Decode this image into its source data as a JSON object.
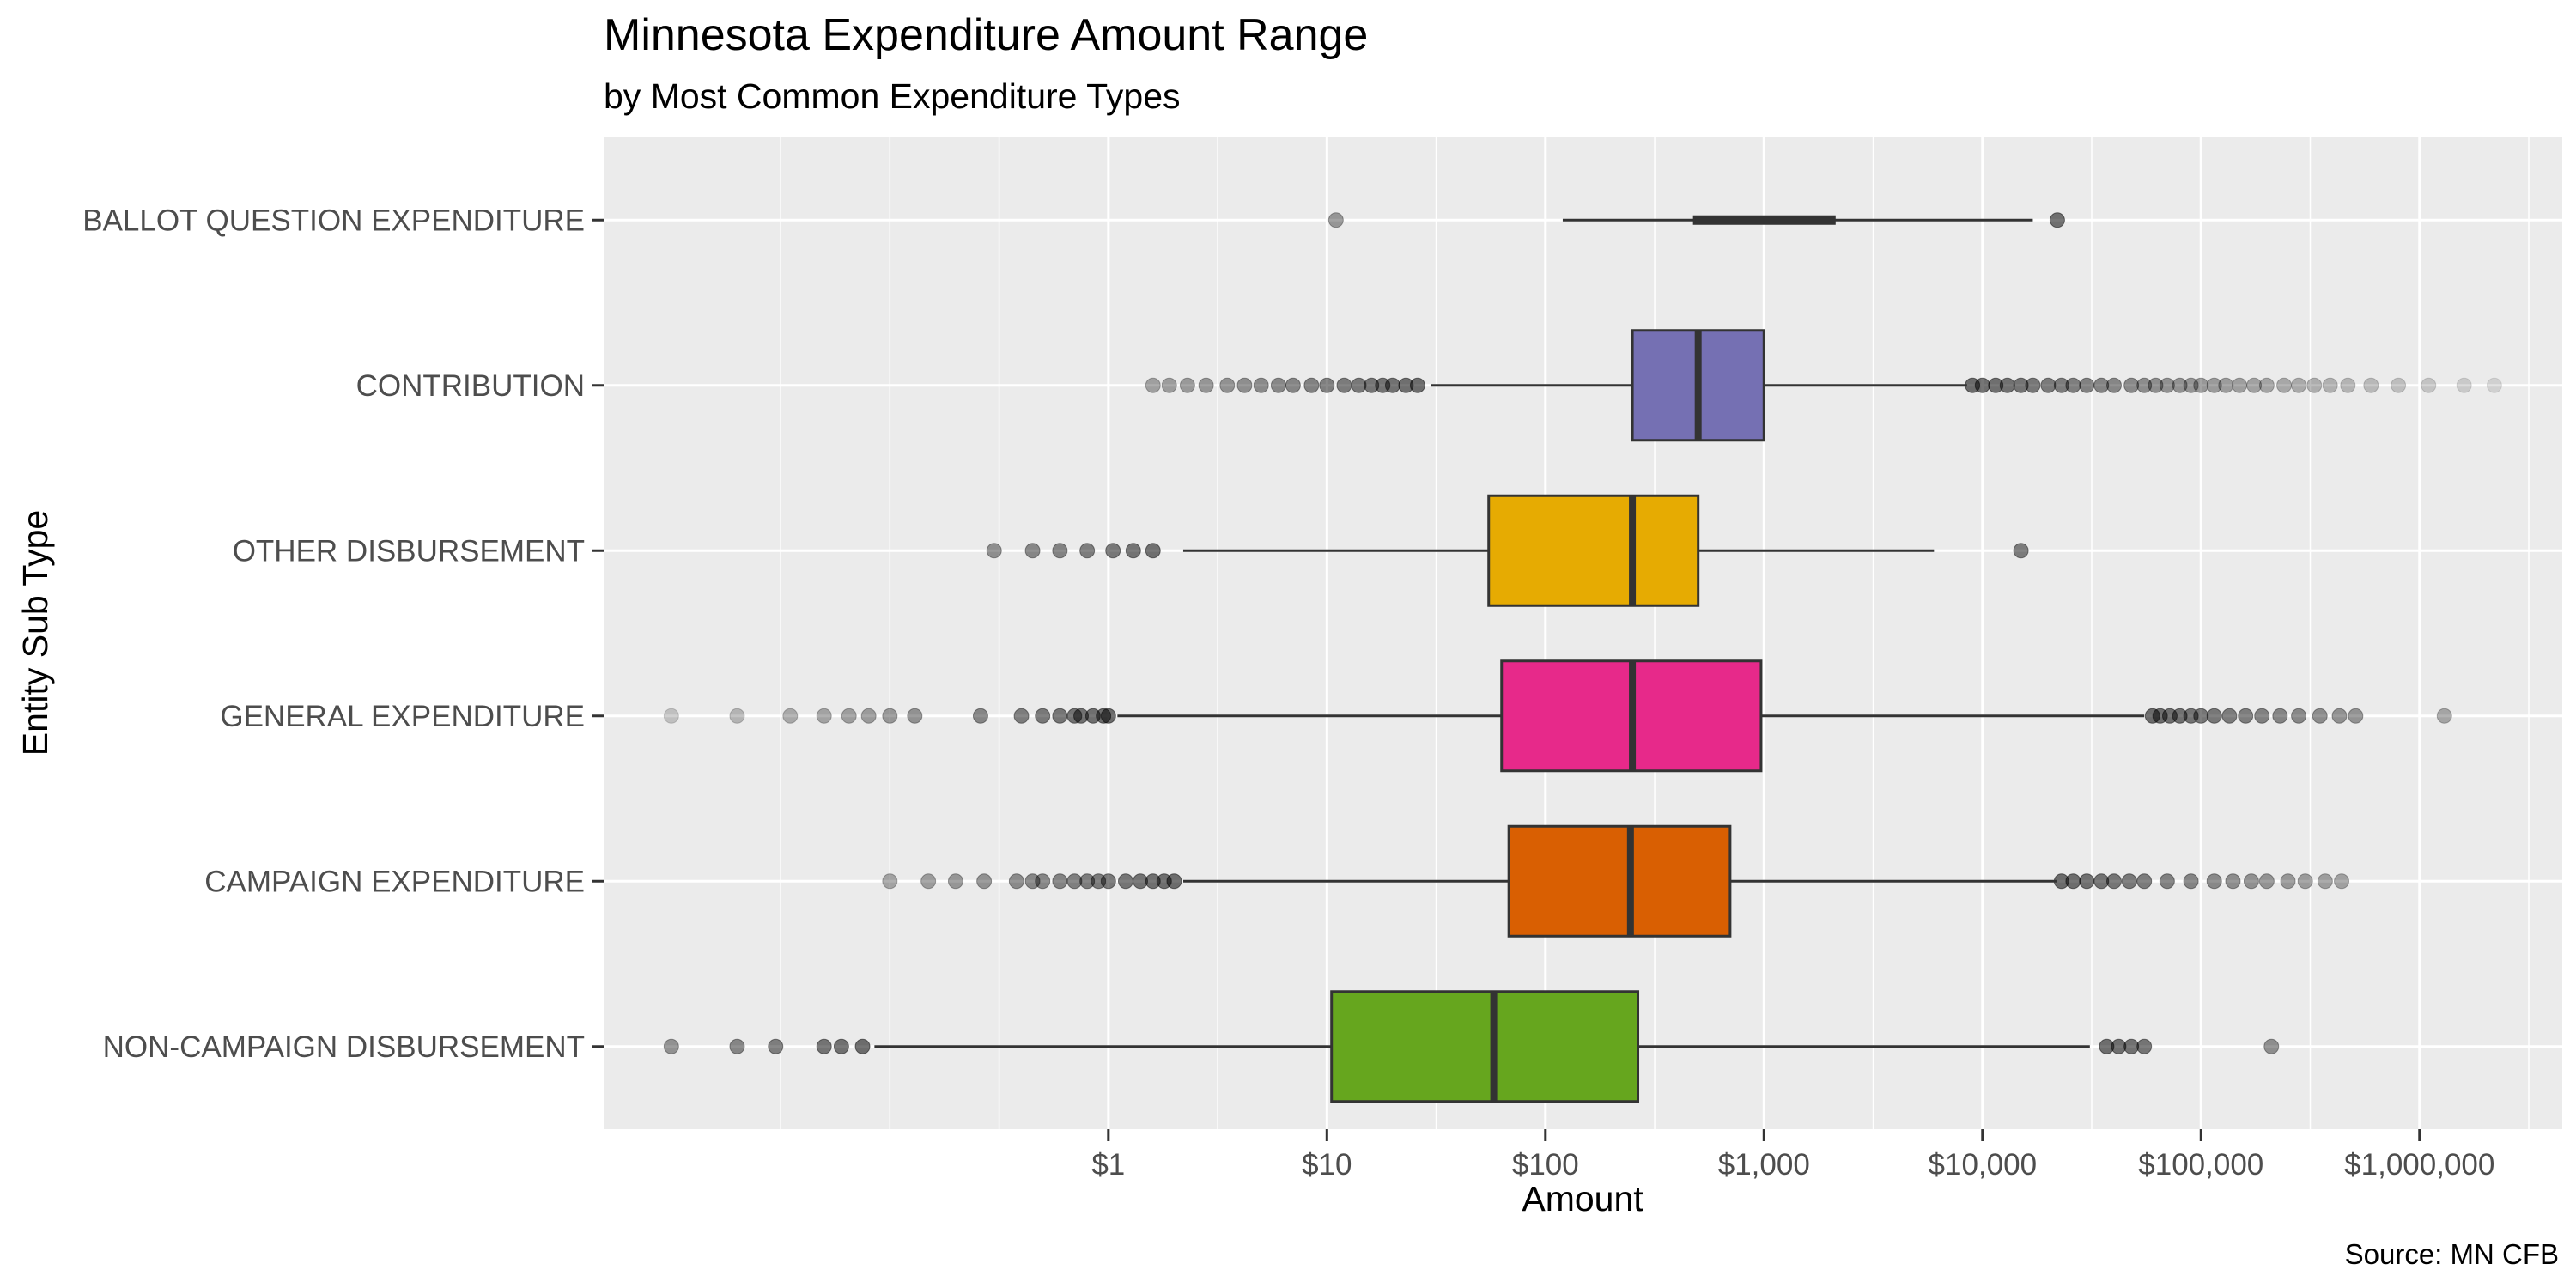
{
  "chart_data": {
    "type": "boxplot",
    "title": "Minnesota Expenditure Amount Range",
    "subtitle": "by Most Common Expenditure Types",
    "xlabel": "Amount",
    "ylabel": "Entity Sub Type",
    "caption": "Source: MN CFB",
    "x_scale": "log10",
    "xlim": [
      0.0049,
      4500000
    ],
    "x_ticks": [
      1,
      10,
      100,
      1000,
      10000,
      100000,
      1000000
    ],
    "x_tick_labels": [
      "$1",
      "$10",
      "$100",
      "$1,000",
      "$10,000",
      "$100,000",
      "$1,000,000"
    ],
    "grid": true,
    "legend": "none",
    "categories": [
      "BALLOT QUESTION EXPENDITURE",
      "CONTRIBUTION",
      "OTHER DISBURSEMENT",
      "GENERAL EXPENDITURE",
      "CAMPAIGN EXPENDITURE",
      "NON-CAMPAIGN DISBURSEMENT"
    ],
    "series": [
      {
        "category": "BALLOT QUESTION EXPENDITURE",
        "color": "#e6ab02",
        "whisker_low": 120,
        "q1": 480,
        "median": 1000,
        "q3": 2100,
        "whisker_high": 17000,
        "outliers": [
          11,
          22000
        ]
      },
      {
        "category": "CONTRIBUTION",
        "color": "#7570b3",
        "whisker_low": 30,
        "q1": 250,
        "median": 500,
        "q3": 1000,
        "whisker_high": 8500,
        "outliers": [
          1.6,
          1.9,
          2.3,
          2.8,
          3.5,
          4.2,
          5,
          6,
          7,
          8.5,
          10,
          12,
          14,
          16,
          18,
          20,
          23,
          26,
          9000,
          10000,
          11500,
          13000,
          15000,
          17000,
          20000,
          23000,
          26000,
          30000,
          35000,
          40000,
          48000,
          55000,
          62000,
          70000,
          80000,
          90000,
          100000,
          115000,
          130000,
          150000,
          175000,
          200000,
          240000,
          280000,
          330000,
          390000,
          470000,
          600000,
          800000,
          1100000,
          1600000,
          2200000
        ]
      },
      {
        "category": "OTHER DISBURSEMENT",
        "color": "#e6ab02",
        "whisker_low": 2.2,
        "q1": 55,
        "median": 250,
        "q3": 500,
        "whisker_high": 6000,
        "outliers": [
          0.3,
          0.45,
          0.6,
          0.8,
          1.05,
          1.3,
          1.6,
          15000
        ]
      },
      {
        "category": "GENERAL EXPENDITURE",
        "color": "#e7298a",
        "whisker_low": 1.1,
        "q1": 63,
        "median": 250,
        "q3": 970,
        "whisker_high": 55000,
        "outliers": [
          0.01,
          0.02,
          0.035,
          0.05,
          0.065,
          0.08,
          0.1,
          0.13,
          0.26,
          0.4,
          0.5,
          0.6,
          0.7,
          0.75,
          0.85,
          0.95,
          1.0,
          60000,
          65000,
          72000,
          80000,
          90000,
          100000,
          115000,
          135000,
          160000,
          190000,
          230000,
          280000,
          350000,
          430000,
          510000,
          1300000
        ]
      },
      {
        "category": "CAMPAIGN EXPENDITURE",
        "color": "#d95f02",
        "whisker_low": 2.2,
        "q1": 68,
        "median": 245,
        "q3": 700,
        "whisker_high": 22000,
        "outliers": [
          0.1,
          0.15,
          0.2,
          0.27,
          0.38,
          0.45,
          0.5,
          0.6,
          0.7,
          0.8,
          0.9,
          1.0,
          1.2,
          1.4,
          1.6,
          1.8,
          2.0,
          23000,
          26000,
          30000,
          35000,
          40000,
          47000,
          55000,
          70000,
          90000,
          115000,
          140000,
          170000,
          200000,
          250000,
          300000,
          370000,
          440000
        ]
      },
      {
        "category": "NON-CAMPAIGN DISBURSEMENT",
        "color": "#66a61e",
        "whisker_low": 0.085,
        "q1": 10.5,
        "median": 58,
        "q3": 265,
        "whisker_high": 31000,
        "outliers": [
          0.01,
          0.02,
          0.03,
          0.05,
          0.06,
          0.075,
          37000,
          42000,
          48000,
          55000,
          210000
        ]
      }
    ]
  }
}
